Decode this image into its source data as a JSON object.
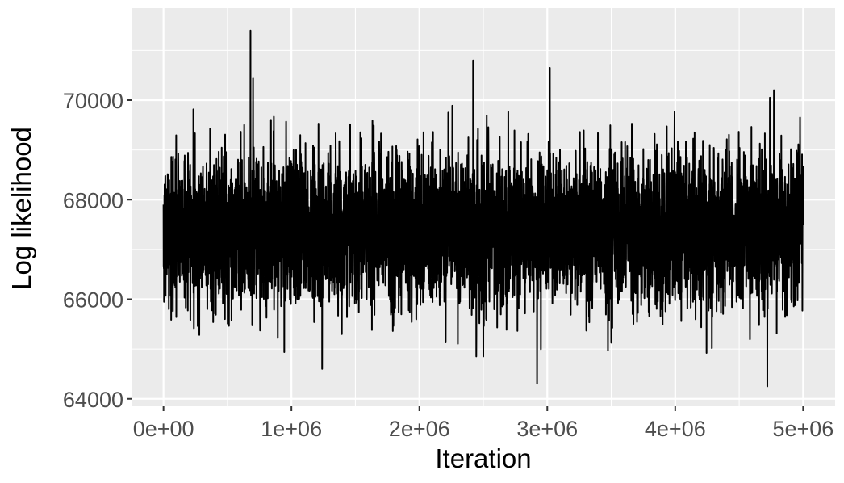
{
  "chart_data": {
    "type": "line",
    "title": "",
    "xlabel": "Iteration",
    "ylabel": "Log likelihood",
    "xlim": [
      -250000,
      5250000
    ],
    "ylim": [
      63850,
      71850
    ],
    "x_ticks": [
      0,
      1000000,
      2000000,
      3000000,
      4000000,
      5000000
    ],
    "x_tick_labels": [
      "0e+00",
      "1e+06",
      "2e+06",
      "3e+06",
      "4e+06",
      "5e+06"
    ],
    "y_ticks": [
      64000,
      66000,
      68000,
      70000
    ],
    "y_tick_labels": [
      "64000",
      "66000",
      "68000",
      "70000"
    ],
    "grid": true,
    "panel_background": "#ebebeb",
    "line_color": "#000000",
    "series": [
      {
        "summary": {
          "mean": 67400,
          "sd": 750,
          "min": 64250,
          "max": 71400
        },
        "notable_points": [
          {
            "x": 0,
            "y": 67900
          },
          {
            "x": 680000,
            "y": 71400
          },
          {
            "x": 700000,
            "y": 70450
          },
          {
            "x": 1240000,
            "y": 64600
          },
          {
            "x": 2420000,
            "y": 70800
          },
          {
            "x": 2920000,
            "y": 64300
          },
          {
            "x": 3020000,
            "y": 70650
          },
          {
            "x": 4720000,
            "y": 64250
          },
          {
            "x": 4740000,
            "y": 70050
          },
          {
            "x": 5000000,
            "y": 67500
          }
        ]
      }
    ]
  }
}
